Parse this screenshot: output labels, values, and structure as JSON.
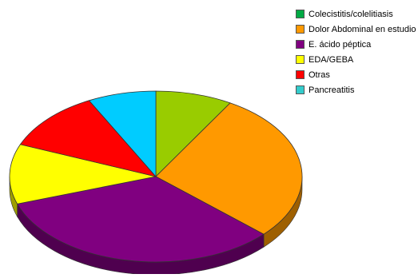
{
  "chart_data": {
    "type": "pie",
    "title": "",
    "categories": [
      "Colecistitis/colelitiasis",
      "Dolor Abdominal en estudio",
      "E. ácido péptica",
      "EDA/GEBA",
      "Otras",
      "Pancreatitis"
    ],
    "values": [
      9,
      30,
      35,
      12,
      12,
      8
    ],
    "colors": [
      "#99CC00",
      "#FF9900",
      "#800080",
      "#FFFF00",
      "#FF0000",
      "#00CCFF"
    ],
    "start_angle_deg": 90,
    "direction": "clockwise",
    "three_d": true,
    "legend_position": "top-right",
    "legend": [
      {
        "label": "Colecistitis/colelitiasis",
        "color": "#00AA44"
      },
      {
        "label": "Dolor Abdominal en estudio",
        "color": "#FF9900"
      },
      {
        "label": "E. ácido péptica",
        "color": "#800080"
      },
      {
        "label": "EDA/GEBA",
        "color": "#FFFF00"
      },
      {
        "label": "Otras",
        "color": "#FF0000"
      },
      {
        "label": "Pancreatitis",
        "color": "#33CCCC"
      }
    ]
  }
}
